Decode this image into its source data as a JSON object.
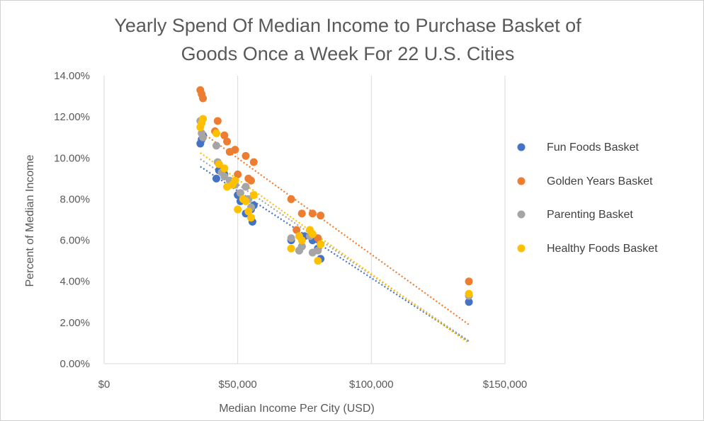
{
  "chart_data": {
    "type": "scatter",
    "title": [
      "Yearly Spend Of Median  Income to Purchase Basket of",
      "Goods Once a Week For 22 U.S. Cities"
    ],
    "xlabel": "Median Income Per City (USD)",
    "ylabel": "Percent of Median Income",
    "xlim": [
      0,
      150000
    ],
    "ylim": [
      0,
      0.14
    ],
    "x_ticks": [
      0,
      50000,
      100000,
      150000
    ],
    "x_tick_labels": [
      "$0",
      "$50,000",
      "$100,000",
      "$150,000"
    ],
    "y_ticks": [
      0,
      0.02,
      0.04,
      0.06,
      0.08,
      0.1,
      0.12,
      0.14
    ],
    "y_tick_labels": [
      "0.00%",
      "2.00%",
      "4.00%",
      "6.00%",
      "8.00%",
      "10.00%",
      "12.00%",
      "14.00%"
    ],
    "grid": "vertical",
    "legend_position": "right",
    "trendlines": "linear, dotted",
    "series": [
      {
        "name": "Fun Foods Basket",
        "color": "#4472C4",
        "x": [
          36000,
          36500,
          37000,
          42000,
          43000,
          45000,
          48000,
          50000,
          51000,
          53000,
          54000,
          55000,
          55500,
          56000,
          70000,
          73000,
          74000,
          75000,
          78000,
          80000,
          81000,
          136500
        ],
        "y": [
          0.107,
          0.109,
          0.111,
          0.09,
          0.094,
          0.092,
          0.088,
          0.082,
          0.079,
          0.073,
          0.08,
          0.075,
          0.069,
          0.077,
          0.06,
          0.055,
          0.057,
          0.062,
          0.06,
          0.056,
          0.051,
          0.03
        ],
        "trend": {
          "x": [
            36000,
            136500
          ],
          "y": [
            0.0958,
            0.0108
          ]
        }
      },
      {
        "name": "Golden Years Basket",
        "color": "#ED7D31",
        "x": [
          36000,
          36500,
          37000,
          41500,
          42500,
          45000,
          46000,
          47000,
          49000,
          50000,
          53000,
          54000,
          55000,
          56000,
          70000,
          72000,
          74000,
          78000,
          80000,
          81000,
          136500
        ],
        "y": [
          0.133,
          0.131,
          0.129,
          0.113,
          0.118,
          0.111,
          0.108,
          0.103,
          0.104,
          0.092,
          0.101,
          0.09,
          0.089,
          0.098,
          0.08,
          0.065,
          0.073,
          0.073,
          0.061,
          0.072,
          0.04
        ],
        "trend": {
          "x": [
            36000,
            136500
          ],
          "y": [
            0.113,
            0.019
          ]
        }
      },
      {
        "name": "Parenting Basket",
        "color": "#A5A5A5",
        "x": [
          36000,
          36500,
          37000,
          42000,
          42500,
          44000,
          45000,
          47000,
          49000,
          51000,
          53000,
          54000,
          55000,
          70000,
          73000,
          74000,
          77000,
          78000,
          80000,
          81000,
          136500
        ],
        "y": [
          0.118,
          0.112,
          0.11,
          0.106,
          0.098,
          0.093,
          0.091,
          0.089,
          0.087,
          0.083,
          0.086,
          0.08,
          0.076,
          0.061,
          0.055,
          0.057,
          0.062,
          0.054,
          0.055,
          0.058,
          0.033
        ],
        "trend": {
          "x": [
            36000,
            136500
          ],
          "y": [
            0.0995,
            0.011
          ]
        }
      },
      {
        "name": "Healthy Foods Basket",
        "color": "#FFC000",
        "x": [
          36000,
          36500,
          37000,
          42000,
          43000,
          45000,
          46000,
          48000,
          49000,
          50000,
          52000,
          53000,
          54000,
          55000,
          56000,
          70000,
          73000,
          74000,
          77000,
          78000,
          80000,
          81000,
          136500
        ],
        "y": [
          0.115,
          0.117,
          0.119,
          0.112,
          0.097,
          0.095,
          0.086,
          0.087,
          0.089,
          0.075,
          0.08,
          0.079,
          0.074,
          0.071,
          0.082,
          0.056,
          0.062,
          0.06,
          0.065,
          0.063,
          0.05,
          0.058,
          0.034
        ],
        "trend": {
          "x": [
            36000,
            136500
          ],
          "y": [
            0.1025,
            0.01
          ]
        }
      }
    ]
  }
}
